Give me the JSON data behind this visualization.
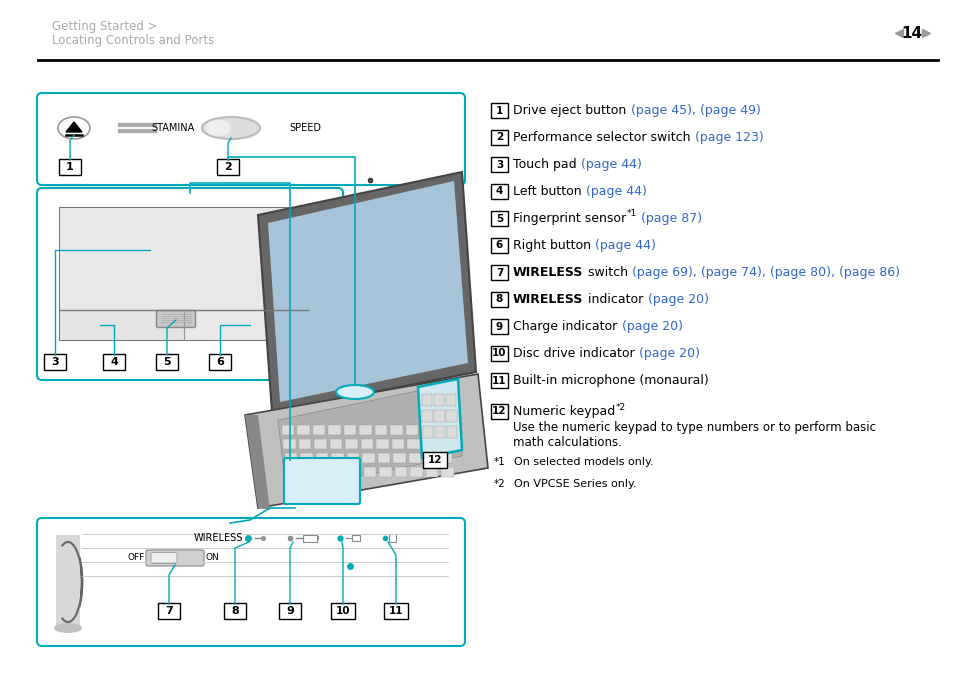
{
  "page_title_line1": "Getting Started >",
  "page_title_line2": "Locating Controls and Ports",
  "page_number": "14",
  "header_text_color": "#aaaaaa",
  "header_line_color": "#000000",
  "cyan_color": "#00aabb",
  "black_color": "#000000",
  "gray_color": "#888888",
  "bg_color": "#ffffff",
  "items": [
    {
      "num": "1",
      "text_parts": [
        {
          "t": "Drive eject button ",
          "bold": false,
          "color": "#000000"
        },
        {
          "t": "(page 45), (page 49)",
          "bold": false,
          "color": "#3366cc"
        }
      ]
    },
    {
      "num": "2",
      "text_parts": [
        {
          "t": "Performance selector switch ",
          "bold": false,
          "color": "#000000"
        },
        {
          "t": "(page 123)",
          "bold": false,
          "color": "#3366cc"
        }
      ]
    },
    {
      "num": "3",
      "text_parts": [
        {
          "t": "Touch pad ",
          "bold": false,
          "color": "#000000"
        },
        {
          "t": "(page 44)",
          "bold": false,
          "color": "#3366cc"
        }
      ]
    },
    {
      "num": "4",
      "text_parts": [
        {
          "t": "Left button ",
          "bold": false,
          "color": "#000000"
        },
        {
          "t": "(page 44)",
          "bold": false,
          "color": "#3366cc"
        }
      ]
    },
    {
      "num": "5",
      "text_parts": [
        {
          "t": "Fingerprint sensor",
          "bold": false,
          "color": "#000000"
        },
        {
          "t": "*1",
          "bold": false,
          "color": "#000000",
          "super": true
        },
        {
          "t": " (page 87)",
          "bold": false,
          "color": "#3366cc"
        }
      ]
    },
    {
      "num": "6",
      "text_parts": [
        {
          "t": "Right button ",
          "bold": false,
          "color": "#000000"
        },
        {
          "t": "(page 44)",
          "bold": false,
          "color": "#3366cc"
        }
      ]
    },
    {
      "num": "7",
      "text_parts": [
        {
          "t": "WIRELESS",
          "bold": true,
          "color": "#000000"
        },
        {
          "t": " switch ",
          "bold": false,
          "color": "#000000"
        },
        {
          "t": "(page 69), (page 74), (page 80), (page 86)",
          "bold": false,
          "color": "#3366cc"
        }
      ]
    },
    {
      "num": "8",
      "text_parts": [
        {
          "t": "WIRELESS",
          "bold": true,
          "color": "#000000"
        },
        {
          "t": " indicator ",
          "bold": false,
          "color": "#000000"
        },
        {
          "t": "(page 20)",
          "bold": false,
          "color": "#3366cc"
        }
      ]
    },
    {
      "num": "9",
      "text_parts": [
        {
          "t": "Charge indicator ",
          "bold": false,
          "color": "#000000"
        },
        {
          "t": "(page 20)",
          "bold": false,
          "color": "#3366cc"
        }
      ]
    },
    {
      "num": "10",
      "text_parts": [
        {
          "t": "Disc drive indicator ",
          "bold": false,
          "color": "#000000"
        },
        {
          "t": "(page 20)",
          "bold": false,
          "color": "#3366cc"
        }
      ]
    },
    {
      "num": "11",
      "text_parts": [
        {
          "t": "Built-in microphone (monaural)",
          "bold": false,
          "color": "#000000"
        }
      ]
    },
    {
      "num": "12",
      "text_parts": [
        {
          "t": "Numeric keypad",
          "bold": false,
          "color": "#000000"
        },
        {
          "t": "*2",
          "bold": false,
          "color": "#000000",
          "super": true
        }
      ],
      "extra": "Use the numeric keypad to type numbers or to perform basic\nmath calculations."
    }
  ],
  "footnotes": [
    {
      "mark": "*1",
      "text": "On selected models only."
    },
    {
      "mark": "*2",
      "text": "On VPCSE Series only."
    }
  ]
}
